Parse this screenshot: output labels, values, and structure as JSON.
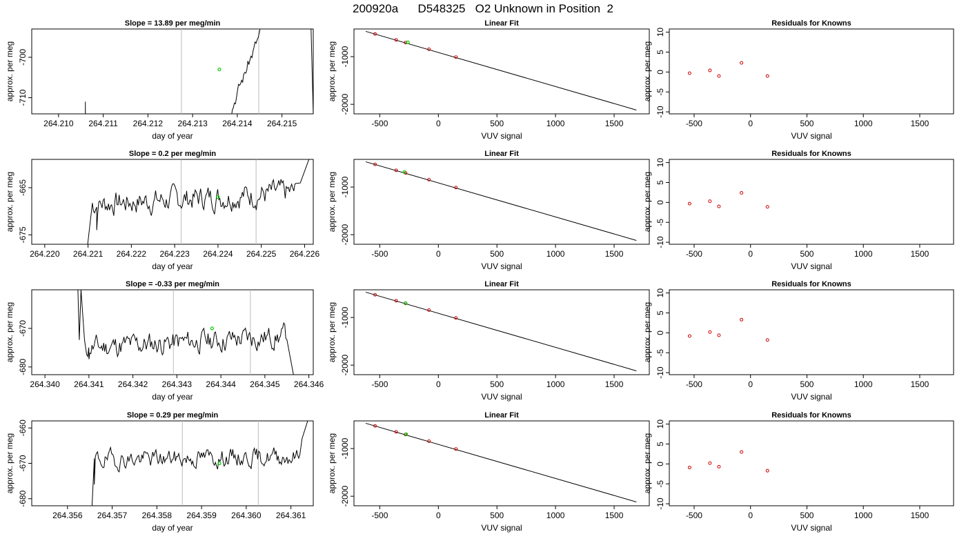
{
  "page": {
    "title": "200920a      D548325   O2 Unknown in Position  2"
  },
  "colors": {
    "trace": "#000000",
    "known": "#cc0000",
    "unknown": "#00cc00",
    "vline": "#bbbbbb",
    "fit": "#000000"
  },
  "chart_data": [
    {
      "row": 0,
      "col": 0,
      "type": "line",
      "title": "Slope =  13.89  per meg/min",
      "xlabel": "day of year",
      "ylabel": "approx. per meg",
      "xlim": [
        264.2094,
        264.2157
      ],
      "ylim": [
        -714,
        -693
      ],
      "xticks": [
        "264.210",
        "264.211",
        "264.212",
        "264.213",
        "264.214",
        "264.215"
      ],
      "xtick_values": [
        264.21,
        264.211,
        264.212,
        264.213,
        264.214,
        264.215
      ],
      "yticks": [
        "-700",
        "-710"
      ],
      "ytick_values": [
        -700,
        -710
      ],
      "vlines": [
        264.21275,
        264.21448
      ],
      "marker": {
        "x": 264.2136,
        "y": -703
      },
      "trace": {
        "x0": 264.2106,
        "x1": 264.215,
        "start": -760,
        "end": -680,
        "seed": 3,
        "shape": "ramp",
        "noise": 0.8,
        "spikes": [
          [
            264.2106,
            -711
          ],
          [
            264.21565,
            -693
          ],
          [
            264.2157,
            -714
          ]
        ]
      }
    },
    {
      "row": 0,
      "col": 1,
      "type": "scatter",
      "title": "Linear Fit",
      "xlabel": "VUV signal",
      "ylabel": "approx. per meg",
      "xlim": [
        -720,
        1800
      ],
      "ylim": [
        -2200,
        -420
      ],
      "xticks": [
        "-500",
        "0",
        "500",
        "1000",
        "1500"
      ],
      "xtick_values": [
        -500,
        0,
        500,
        1000,
        1500
      ],
      "yticks": [
        "-1000",
        "-2000"
      ],
      "ytick_values": [
        -1000,
        -2000
      ],
      "fit": {
        "x0": -620,
        "y0": -470,
        "x1": 1690,
        "y1": -2120
      },
      "knowns_x": [
        -540,
        -360,
        -280,
        -80,
        150
      ],
      "knowns_y": [
        -525,
        -650,
        -705,
        -845,
        -1010
      ],
      "unknown": {
        "x": -260,
        "y": -700
      }
    },
    {
      "row": 0,
      "col": 2,
      "type": "scatter",
      "title": "Residuals for Knowns",
      "xlabel": "VUV signal",
      "ylabel": "approx. per meg",
      "xlim": [
        -720,
        1800
      ],
      "ylim": [
        -10.5,
        10.8
      ],
      "xticks": [
        "-500",
        "0",
        "500",
        "1000",
        "1500"
      ],
      "xtick_values": [
        -500,
        0,
        500,
        1000,
        1500
      ],
      "yticks": [
        "10",
        "5",
        "0",
        "-5",
        "-10"
      ],
      "ytick_values": [
        10,
        5,
        0,
        -5,
        -10
      ],
      "knowns_x": [
        -540,
        -360,
        -280,
        -80,
        150
      ],
      "knowns_y": [
        -0.3,
        0.4,
        -1.0,
        2.3,
        -1.0
      ]
    },
    {
      "row": 1,
      "col": 0,
      "type": "line",
      "title": "Slope =  0.2  per meg/min",
      "xlabel": "day of year",
      "ylabel": "approx. per meg",
      "xlim": [
        264.2197,
        264.2262
      ],
      "ylim": [
        -677,
        -659
      ],
      "xticks": [
        "264.220",
        "264.221",
        "264.222",
        "264.223",
        "264.224",
        "264.225",
        "264.226"
      ],
      "xtick_values": [
        264.22,
        264.221,
        264.222,
        264.223,
        264.224,
        264.225,
        264.226
      ],
      "yticks": [
        "-665",
        "-675"
      ],
      "ytick_values": [
        -665,
        -675
      ],
      "vlines": [
        264.22315,
        264.22488
      ],
      "marker": {
        "x": 264.224,
        "y": -667
      },
      "trace": {
        "x0": 264.2211,
        "x1": 264.2258,
        "start": -668.5,
        "end": -666,
        "seed": 7,
        "shape": "flat",
        "noise": 1.3,
        "spikes": [
          [
            264.22098,
            -678
          ],
          [
            264.2212,
            -674
          ],
          [
            264.2259,
            -664
          ],
          [
            264.2261,
            -659
          ]
        ]
      }
    },
    {
      "row": 1,
      "col": 1,
      "type": "scatter",
      "title": "Linear Fit",
      "xlabel": "VUV signal",
      "ylabel": "approx. per meg",
      "xlim": [
        -720,
        1800
      ],
      "ylim": [
        -2200,
        -420
      ],
      "xticks": [
        "-500",
        "0",
        "500",
        "1000",
        "1500"
      ],
      "xtick_values": [
        -500,
        0,
        500,
        1000,
        1500
      ],
      "yticks": [
        "-1000",
        "-2000"
      ],
      "ytick_values": [
        -1000,
        -2000
      ],
      "fit": {
        "x0": -620,
        "y0": -470,
        "x1": 1690,
        "y1": -2120
      },
      "knowns_x": [
        -540,
        -360,
        -280,
        -80,
        150
      ],
      "knowns_y": [
        -525,
        -650,
        -705,
        -845,
        -1010
      ],
      "unknown": {
        "x": -290,
        "y": -685
      }
    },
    {
      "row": 1,
      "col": 2,
      "type": "scatter",
      "title": "Residuals for Knowns",
      "xlabel": "VUV signal",
      "ylabel": "approx. per meg",
      "xlim": [
        -720,
        1800
      ],
      "ylim": [
        -10.5,
        10.8
      ],
      "xticks": [
        "-500",
        "0",
        "500",
        "1000",
        "1500"
      ],
      "xtick_values": [
        -500,
        0,
        500,
        1000,
        1500
      ],
      "yticks": [
        "10",
        "5",
        "0",
        "-5",
        "-10"
      ],
      "ytick_values": [
        10,
        5,
        0,
        -5,
        -10
      ],
      "knowns_x": [
        -540,
        -360,
        -280,
        -80,
        150
      ],
      "knowns_y": [
        -0.3,
        0.3,
        -1.0,
        2.4,
        -1.1
      ]
    },
    {
      "row": 2,
      "col": 0,
      "type": "line",
      "title": "Slope =  -0.33  per meg/min",
      "xlabel": "day of year",
      "ylabel": "approx. per meg",
      "xlim": [
        264.3397,
        264.3461
      ],
      "ylim": [
        -682,
        -660
      ],
      "xticks": [
        "264.340",
        "264.341",
        "264.342",
        "264.343",
        "264.344",
        "264.345",
        "264.346"
      ],
      "xtick_values": [
        264.34,
        264.341,
        264.342,
        264.343,
        264.344,
        264.345,
        264.346
      ],
      "yticks": [
        "-670",
        "-680"
      ],
      "ytick_values": [
        -670,
        -680
      ],
      "vlines": [
        264.34292,
        264.34467
      ],
      "marker": {
        "x": 264.3438,
        "y": -670
      },
      "trace": {
        "x0": 264.3409,
        "x1": 264.3455,
        "start": -675,
        "end": -672,
        "seed": 11,
        "shape": "flat",
        "noise": 1.5,
        "spikes": [
          [
            264.34075,
            -660
          ],
          [
            264.34078,
            -673
          ],
          [
            264.34082,
            -660
          ],
          [
            264.341,
            -678
          ],
          [
            264.34565,
            -682
          ]
        ]
      }
    },
    {
      "row": 2,
      "col": 1,
      "type": "scatter",
      "title": "Linear Fit",
      "xlabel": "VUV signal",
      "ylabel": "approx. per meg",
      "xlim": [
        -720,
        1800
      ],
      "ylim": [
        -2200,
        -420
      ],
      "xticks": [
        "-500",
        "0",
        "500",
        "1000",
        "1500"
      ],
      "xtick_values": [
        -500,
        0,
        500,
        1000,
        1500
      ],
      "yticks": [
        "-1000",
        "-2000"
      ],
      "ytick_values": [
        -1000,
        -2000
      ],
      "fit": {
        "x0": -620,
        "y0": -470,
        "x1": 1690,
        "y1": -2120
      },
      "knowns_x": [
        -540,
        -360,
        -280,
        -80,
        150
      ],
      "knowns_y": [
        -525,
        -650,
        -705,
        -845,
        -1010
      ],
      "unknown": {
        "x": -280,
        "y": -700
      }
    },
    {
      "row": 2,
      "col": 2,
      "type": "scatter",
      "title": "Residuals for Knowns",
      "xlabel": "VUV signal",
      "ylabel": "approx. per meg",
      "xlim": [
        -720,
        1800
      ],
      "ylim": [
        -10.5,
        10.8
      ],
      "xticks": [
        "-500",
        "0",
        "500",
        "1000",
        "1500"
      ],
      "xtick_values": [
        -500,
        0,
        500,
        1000,
        1500
      ],
      "yticks": [
        "10",
        "5",
        "0",
        "-5",
        "-10"
      ],
      "ytick_values": [
        10,
        5,
        0,
        -5,
        -10
      ],
      "knowns_x": [
        -540,
        -360,
        -280,
        -80,
        150
      ],
      "knowns_y": [
        -0.8,
        0.2,
        -0.6,
        3.3,
        -1.8
      ]
    },
    {
      "row": 3,
      "col": 0,
      "type": "line",
      "title": "Slope =  0.29  per meg/min",
      "xlabel": "day of year",
      "ylabel": "approx. per meg",
      "xlim": [
        264.3552,
        264.3615
      ],
      "ylim": [
        -682,
        -658
      ],
      "xticks": [
        "264.356",
        "264.357",
        "264.358",
        "264.359",
        "264.360",
        "264.361"
      ],
      "xtick_values": [
        264.356,
        264.357,
        264.358,
        264.359,
        264.36,
        264.361
      ],
      "yticks": [
        "-660",
        "-670",
        "-680"
      ],
      "ytick_values": [
        -660,
        -670,
        -680
      ],
      "vlines": [
        264.35857,
        264.36027
      ],
      "marker": {
        "x": 264.3594,
        "y": -670
      },
      "trace": {
        "x0": 264.3566,
        "x1": 264.3612,
        "start": -669,
        "end": -668,
        "seed": 19,
        "shape": "flat",
        "noise": 1.3,
        "spikes": [
          [
            264.35655,
            -682
          ],
          [
            264.3566,
            -676
          ],
          [
            264.36125,
            -663
          ],
          [
            264.3614,
            -657
          ]
        ]
      }
    },
    {
      "row": 3,
      "col": 1,
      "type": "scatter",
      "title": "Linear Fit",
      "xlabel": "VUV signal",
      "ylabel": "approx. per meg",
      "xlim": [
        -720,
        1800
      ],
      "ylim": [
        -2200,
        -420
      ],
      "xticks": [
        "-500",
        "0",
        "500",
        "1000",
        "1500"
      ],
      "xtick_values": [
        -500,
        0,
        500,
        1000,
        1500
      ],
      "yticks": [
        "-1000",
        "-2000"
      ],
      "ytick_values": [
        -1000,
        -2000
      ],
      "fit": {
        "x0": -620,
        "y0": -470,
        "x1": 1690,
        "y1": -2120
      },
      "knowns_x": [
        -540,
        -360,
        -280,
        -80,
        150
      ],
      "knowns_y": [
        -525,
        -650,
        -705,
        -845,
        -1010
      ],
      "unknown": {
        "x": -275,
        "y": -700
      }
    },
    {
      "row": 3,
      "col": 2,
      "type": "scatter",
      "title": "Residuals for Knowns",
      "xlabel": "VUV signal",
      "ylabel": "approx. per meg",
      "xlim": [
        -720,
        1800
      ],
      "ylim": [
        -10.5,
        10.8
      ],
      "xticks": [
        "-500",
        "0",
        "500",
        "1000",
        "1500"
      ],
      "xtick_values": [
        -500,
        0,
        500,
        1000,
        1500
      ],
      "yticks": [
        "10",
        "5",
        "0",
        "-5",
        "-10"
      ],
      "ytick_values": [
        10,
        5,
        0,
        -5,
        -10
      ],
      "knowns_x": [
        -540,
        -360,
        -280,
        -80,
        150
      ],
      "knowns_y": [
        -0.9,
        0.2,
        -0.7,
        3.0,
        -1.7
      ]
    }
  ]
}
